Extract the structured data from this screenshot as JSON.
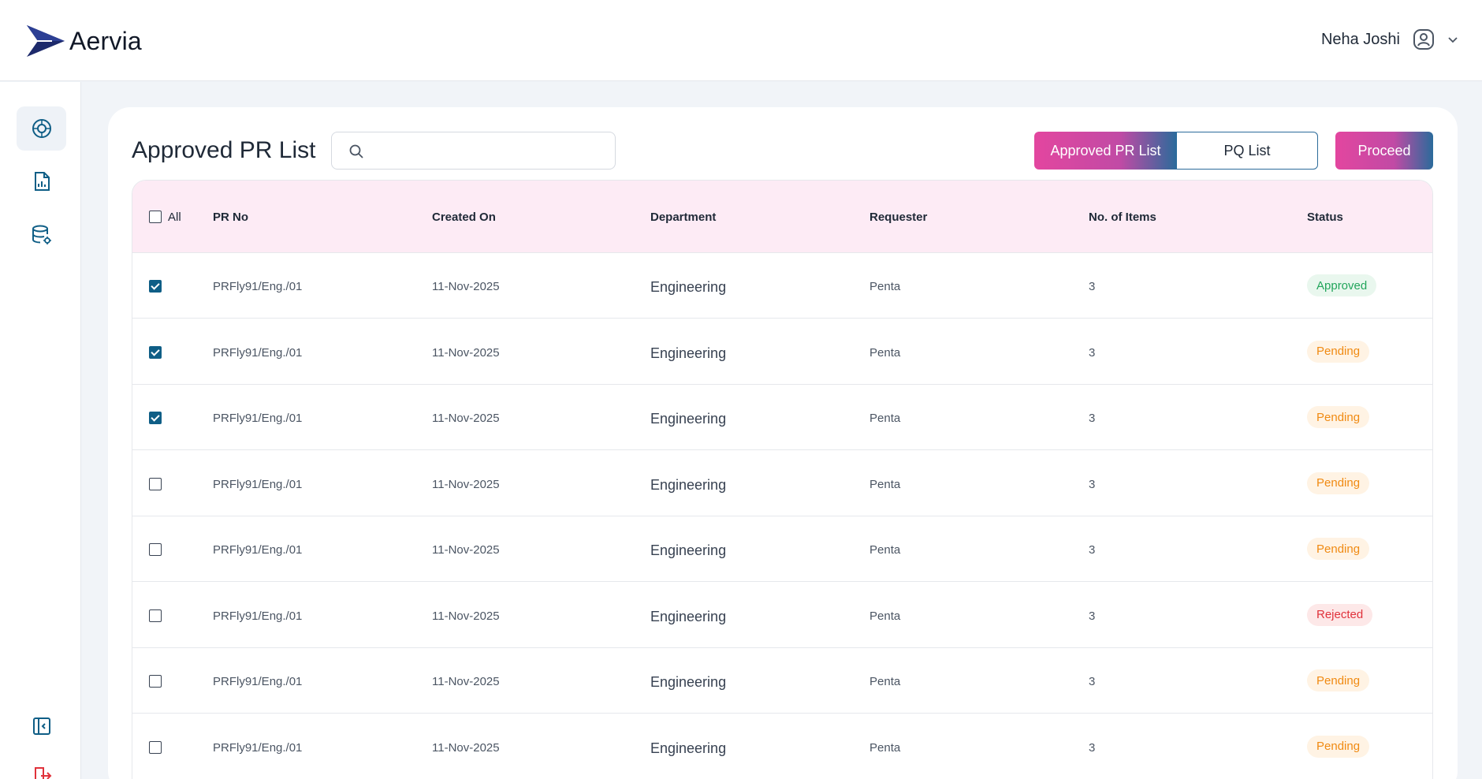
{
  "app": {
    "name": "Aervia"
  },
  "user": {
    "name": "Neha Joshi"
  },
  "icons": {
    "logo": "aervia-arrow-logo-icon",
    "user": "user-circle-icon",
    "chevron": "chevron-down-icon",
    "sidebar": [
      "dashboard-target-icon",
      "report-document-icon",
      "database-settings-icon",
      "collapse-sidebar-icon",
      "logout-icon"
    ],
    "search": "search-icon"
  },
  "colors": {
    "accent_pink": "#e3469f",
    "accent_blue": "#2a6b9b",
    "header_bg": "#fdebf5"
  },
  "page": {
    "title": "Approved PR List",
    "search": {
      "placeholder": "",
      "value": ""
    },
    "tabs": [
      {
        "label": "Approved PR List",
        "active": true
      },
      {
        "label": "PQ List",
        "active": false
      }
    ],
    "proceed_label": "Proceed"
  },
  "table": {
    "select_all_label": "All",
    "headers": [
      "PR No",
      "Created On",
      "Department",
      "Requester",
      "No. of Items",
      "Status"
    ],
    "rows": [
      {
        "checked": true,
        "pr_no": "PRFly91/Eng./01",
        "created_on": "11-Nov-2025",
        "department": "Engineering",
        "requester": "Penta",
        "items": "3",
        "status": "Approved"
      },
      {
        "checked": true,
        "pr_no": "PRFly91/Eng./01",
        "created_on": "11-Nov-2025",
        "department": "Engineering",
        "requester": "Penta",
        "items": "3",
        "status": "Pending"
      },
      {
        "checked": true,
        "pr_no": "PRFly91/Eng./01",
        "created_on": "11-Nov-2025",
        "department": "Engineering",
        "requester": "Penta",
        "items": "3",
        "status": "Pending"
      },
      {
        "checked": false,
        "pr_no": "PRFly91/Eng./01",
        "created_on": "11-Nov-2025",
        "department": "Engineering",
        "requester": "Penta",
        "items": "3",
        "status": "Pending"
      },
      {
        "checked": false,
        "pr_no": "PRFly91/Eng./01",
        "created_on": "11-Nov-2025",
        "department": "Engineering",
        "requester": "Penta",
        "items": "3",
        "status": "Pending"
      },
      {
        "checked": false,
        "pr_no": "PRFly91/Eng./01",
        "created_on": "11-Nov-2025",
        "department": "Engineering",
        "requester": "Penta",
        "items": "3",
        "status": "Rejected"
      },
      {
        "checked": false,
        "pr_no": "PRFly91/Eng./01",
        "created_on": "11-Nov-2025",
        "department": "Engineering",
        "requester": "Penta",
        "items": "3",
        "status": "Pending"
      },
      {
        "checked": false,
        "pr_no": "PRFly91/Eng./01",
        "created_on": "11-Nov-2025",
        "department": "Engineering",
        "requester": "Penta",
        "items": "3",
        "status": "Pending"
      }
    ]
  }
}
